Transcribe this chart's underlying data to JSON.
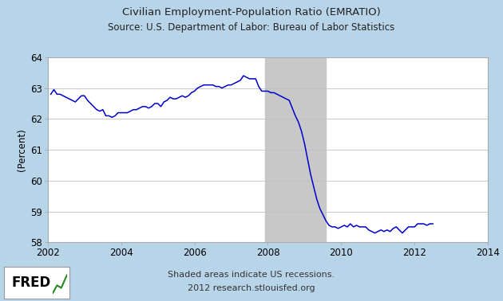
{
  "title_line1": "Civilian Employment-Population Ratio (EMRATIO)",
  "title_line2": "Source: U.S. Department of Labor: Bureau of Labor Statistics",
  "ylabel": "(Percent)",
  "xlabel_note1": "Shaded areas indicate US recessions.",
  "xlabel_note2": "2012 research.stlouisfed.org",
  "xlim": [
    2002,
    2014
  ],
  "ylim": [
    58,
    64
  ],
  "yticks": [
    58,
    59,
    60,
    61,
    62,
    63,
    64
  ],
  "xticks": [
    2002,
    2004,
    2006,
    2008,
    2010,
    2012,
    2014
  ],
  "recession_start": 2007.917,
  "recession_end": 2009.583,
  "line_color": "#0000CC",
  "background_color": "#b8d4e8",
  "plot_bg_color": "#ffffff",
  "recession_color": "#c8c8c8",
  "data": [
    [
      2002.0833,
      62.8
    ],
    [
      2002.1667,
      62.95
    ],
    [
      2002.25,
      62.8
    ],
    [
      2002.3333,
      62.8
    ],
    [
      2002.4167,
      62.75
    ],
    [
      2002.5,
      62.7
    ],
    [
      2002.5833,
      62.65
    ],
    [
      2002.6667,
      62.6
    ],
    [
      2002.75,
      62.55
    ],
    [
      2002.8333,
      62.65
    ],
    [
      2002.9167,
      62.75
    ],
    [
      2003.0,
      62.75
    ],
    [
      2003.0833,
      62.6
    ],
    [
      2003.1667,
      62.5
    ],
    [
      2003.25,
      62.4
    ],
    [
      2003.3333,
      62.3
    ],
    [
      2003.4167,
      62.25
    ],
    [
      2003.5,
      62.3
    ],
    [
      2003.5833,
      62.1
    ],
    [
      2003.6667,
      62.1
    ],
    [
      2003.75,
      62.05
    ],
    [
      2003.8333,
      62.1
    ],
    [
      2003.9167,
      62.2
    ],
    [
      2004.0,
      62.2
    ],
    [
      2004.0833,
      62.2
    ],
    [
      2004.1667,
      62.2
    ],
    [
      2004.25,
      62.25
    ],
    [
      2004.3333,
      62.3
    ],
    [
      2004.4167,
      62.3
    ],
    [
      2004.5,
      62.35
    ],
    [
      2004.5833,
      62.4
    ],
    [
      2004.6667,
      62.4
    ],
    [
      2004.75,
      62.35
    ],
    [
      2004.8333,
      62.4
    ],
    [
      2004.9167,
      62.5
    ],
    [
      2005.0,
      62.5
    ],
    [
      2005.0833,
      62.4
    ],
    [
      2005.1667,
      62.55
    ],
    [
      2005.25,
      62.6
    ],
    [
      2005.3333,
      62.7
    ],
    [
      2005.4167,
      62.65
    ],
    [
      2005.5,
      62.65
    ],
    [
      2005.5833,
      62.7
    ],
    [
      2005.6667,
      62.75
    ],
    [
      2005.75,
      62.7
    ],
    [
      2005.8333,
      62.75
    ],
    [
      2005.9167,
      62.85
    ],
    [
      2006.0,
      62.9
    ],
    [
      2006.0833,
      63.0
    ],
    [
      2006.1667,
      63.05
    ],
    [
      2006.25,
      63.1
    ],
    [
      2006.3333,
      63.1
    ],
    [
      2006.4167,
      63.1
    ],
    [
      2006.5,
      63.1
    ],
    [
      2006.5833,
      63.05
    ],
    [
      2006.6667,
      63.05
    ],
    [
      2006.75,
      63.0
    ],
    [
      2006.8333,
      63.05
    ],
    [
      2006.9167,
      63.1
    ],
    [
      2007.0,
      63.1
    ],
    [
      2007.0833,
      63.15
    ],
    [
      2007.1667,
      63.2
    ],
    [
      2007.25,
      63.25
    ],
    [
      2007.3333,
      63.4
    ],
    [
      2007.4167,
      63.35
    ],
    [
      2007.5,
      63.3
    ],
    [
      2007.5833,
      63.3
    ],
    [
      2007.6667,
      63.3
    ],
    [
      2007.75,
      63.05
    ],
    [
      2007.8333,
      62.9
    ],
    [
      2007.9167,
      62.9
    ],
    [
      2008.0,
      62.9
    ],
    [
      2008.0833,
      62.85
    ],
    [
      2008.1667,
      62.85
    ],
    [
      2008.25,
      62.8
    ],
    [
      2008.3333,
      62.75
    ],
    [
      2008.4167,
      62.7
    ],
    [
      2008.5,
      62.65
    ],
    [
      2008.5833,
      62.6
    ],
    [
      2008.6667,
      62.35
    ],
    [
      2008.75,
      62.1
    ],
    [
      2008.8333,
      61.9
    ],
    [
      2008.9167,
      61.6
    ],
    [
      2009.0,
      61.2
    ],
    [
      2009.0833,
      60.7
    ],
    [
      2009.1667,
      60.2
    ],
    [
      2009.25,
      59.8
    ],
    [
      2009.3333,
      59.4
    ],
    [
      2009.4167,
      59.1
    ],
    [
      2009.5,
      58.9
    ],
    [
      2009.5833,
      58.7
    ],
    [
      2009.6667,
      58.55
    ],
    [
      2009.75,
      58.5
    ],
    [
      2009.8333,
      58.5
    ],
    [
      2009.9167,
      58.45
    ],
    [
      2010.0,
      58.5
    ],
    [
      2010.0833,
      58.55
    ],
    [
      2010.1667,
      58.5
    ],
    [
      2010.25,
      58.6
    ],
    [
      2010.3333,
      58.5
    ],
    [
      2010.4167,
      58.55
    ],
    [
      2010.5,
      58.5
    ],
    [
      2010.5833,
      58.5
    ],
    [
      2010.6667,
      58.5
    ],
    [
      2010.75,
      58.4
    ],
    [
      2010.8333,
      58.35
    ],
    [
      2010.9167,
      58.3
    ],
    [
      2011.0,
      58.35
    ],
    [
      2011.0833,
      58.4
    ],
    [
      2011.1667,
      58.35
    ],
    [
      2011.25,
      58.4
    ],
    [
      2011.3333,
      58.35
    ],
    [
      2011.4167,
      58.45
    ],
    [
      2011.5,
      58.5
    ],
    [
      2011.5833,
      58.4
    ],
    [
      2011.6667,
      58.3
    ],
    [
      2011.75,
      58.4
    ],
    [
      2011.8333,
      58.5
    ],
    [
      2011.9167,
      58.5
    ],
    [
      2012.0,
      58.5
    ],
    [
      2012.0833,
      58.6
    ],
    [
      2012.1667,
      58.6
    ],
    [
      2012.25,
      58.6
    ],
    [
      2012.3333,
      58.55
    ],
    [
      2012.4167,
      58.6
    ],
    [
      2012.5,
      58.6
    ]
  ]
}
